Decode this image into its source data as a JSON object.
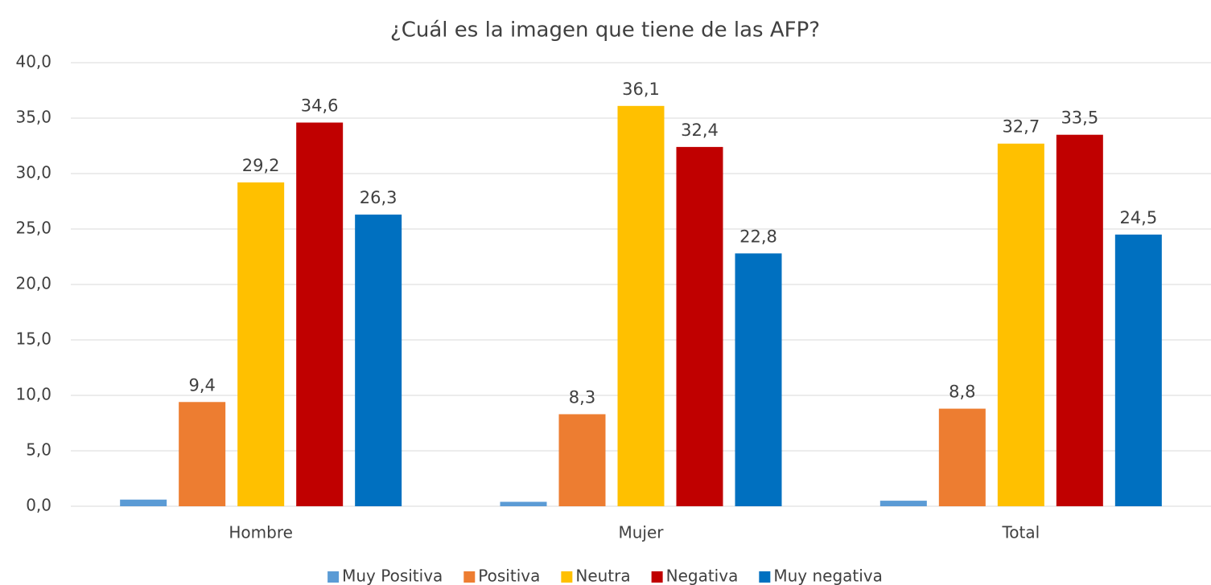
{
  "chart_data": {
    "type": "bar",
    "title": "¿Cuál es la imagen que tiene de las AFP?",
    "categories": [
      "Hombre",
      "Mujer",
      "Total"
    ],
    "series": [
      {
        "name": "Muy Positiva",
        "color": "#5b9bd5",
        "values": [
          0.6,
          0.4,
          0.5
        ]
      },
      {
        "name": "Positiva",
        "color": "#ed7d31",
        "values": [
          9.4,
          8.3,
          8.8
        ],
        "value_labels": [
          "9,4",
          "8,3",
          "8,8"
        ]
      },
      {
        "name": "Neutra",
        "color": "#ffc000",
        "values": [
          29.2,
          36.1,
          32.7
        ],
        "value_labels": [
          "29,2",
          "36,1",
          "32,7"
        ]
      },
      {
        "name": "Negativa",
        "color": "#c00000",
        "values": [
          34.6,
          32.4,
          33.5
        ],
        "value_labels": [
          "34,6",
          "32,4",
          "33,5"
        ]
      },
      {
        "name": "Muy negativa",
        "color": "#0070c0",
        "values": [
          26.3,
          22.8,
          24.5
        ],
        "value_labels": [
          "26,3",
          "22,8",
          "24,5"
        ]
      }
    ],
    "ylim": [
      0,
      40
    ],
    "yticks": [
      {
        "value": 0,
        "label": "0,0"
      },
      {
        "value": 5,
        "label": "5,0"
      },
      {
        "value": 10,
        "label": "10,0"
      },
      {
        "value": 15,
        "label": "15,0"
      },
      {
        "value": 20,
        "label": "20,0"
      },
      {
        "value": 25,
        "label": "25,0"
      },
      {
        "value": 30,
        "label": "30,0"
      },
      {
        "value": 35,
        "label": "35,0"
      },
      {
        "value": 40,
        "label": "40,0"
      }
    ],
    "grid": true,
    "legend": "bottom"
  }
}
